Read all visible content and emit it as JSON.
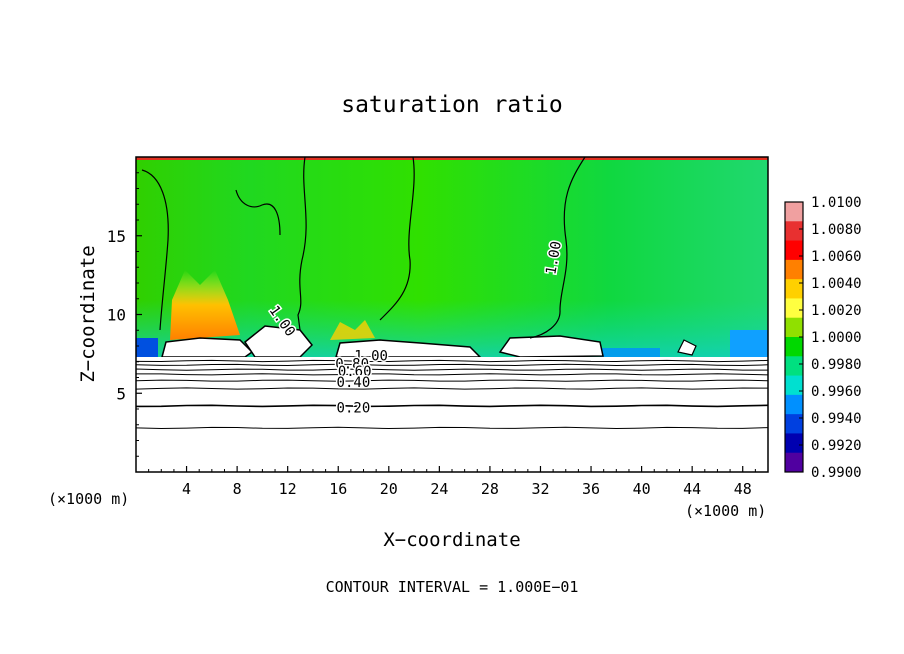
{
  "chart_data": {
    "type": "heatmap",
    "title": "saturation ratio",
    "xlabel": "X−coordinate",
    "ylabel": "Z−coordinate",
    "x_unit_label_left": "(×1000 m)",
    "x_unit_label_right": "(×1000 m)",
    "xlim": [
      0,
      50
    ],
    "ylim": [
      0,
      20
    ],
    "x_ticks": [
      4,
      8,
      12,
      16,
      20,
      24,
      28,
      32,
      36,
      40,
      44,
      48
    ],
    "y_ticks": [
      5,
      10,
      15
    ],
    "x_tick_labels": [
      "4",
      "8",
      "12",
      "16",
      "20",
      "24",
      "28",
      "32",
      "36",
      "40",
      "44",
      "48"
    ],
    "y_tick_labels": [
      "5",
      "10",
      "15"
    ],
    "colorbar": {
      "levels": [
        "1.0100",
        "1.0080",
        "1.0060",
        "1.0040",
        "1.0020",
        "1.0000",
        "0.9980",
        "0.9960",
        "0.9940",
        "0.9920",
        "0.9900"
      ],
      "colors": [
        "#f0a0a0",
        "#e83030",
        "#ff0000",
        "#ff8000",
        "#ffd000",
        "#ffff40",
        "#90e000",
        "#00d800",
        "#00e080",
        "#00e0d0",
        "#0090ff",
        "#0040e0",
        "#0000b0",
        "#5000a0"
      ]
    },
    "contour_labels": [
      {
        "text": "1.00",
        "x": 18.6,
        "z": 7.4
      },
      {
        "text": "0.80",
        "x": 17.1,
        "z": 6.9
      },
      {
        "text": "0.60",
        "x": 17.3,
        "z": 6.4
      },
      {
        "text": "0.40",
        "x": 17.2,
        "z": 5.7
      },
      {
        "text": "0.20",
        "x": 17.2,
        "z": 4.1
      },
      {
        "text": "1.00",
        "x": 11.6,
        "z": 9.6
      },
      {
        "text": "1.00",
        "x": 33.0,
        "z": 13.6
      }
    ],
    "contour_levels_low": [
      0.2,
      0.4,
      0.6,
      0.8,
      1.0
    ],
    "grid": false,
    "legend": "right"
  },
  "footer": "CONTOUR INTERVAL =  1.000E−01"
}
